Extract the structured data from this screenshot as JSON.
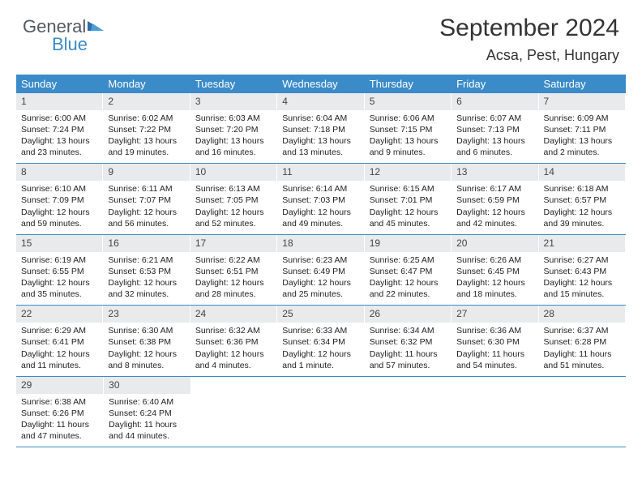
{
  "brand": {
    "part1": "General",
    "part2": "Blue"
  },
  "title": "September 2024",
  "location": "Acsa, Pest, Hungary",
  "header_bg": "#3b8bc9",
  "daynum_bg": "#e8eaec",
  "weekdays": [
    "Sunday",
    "Monday",
    "Tuesday",
    "Wednesday",
    "Thursday",
    "Friday",
    "Saturday"
  ],
  "weeks": [
    [
      {
        "n": "1",
        "sr": "6:00 AM",
        "ss": "7:24 PM",
        "dl": "13 hours and 23 minutes."
      },
      {
        "n": "2",
        "sr": "6:02 AM",
        "ss": "7:22 PM",
        "dl": "13 hours and 19 minutes."
      },
      {
        "n": "3",
        "sr": "6:03 AM",
        "ss": "7:20 PM",
        "dl": "13 hours and 16 minutes."
      },
      {
        "n": "4",
        "sr": "6:04 AM",
        "ss": "7:18 PM",
        "dl": "13 hours and 13 minutes."
      },
      {
        "n": "5",
        "sr": "6:06 AM",
        "ss": "7:15 PM",
        "dl": "13 hours and 9 minutes."
      },
      {
        "n": "6",
        "sr": "6:07 AM",
        "ss": "7:13 PM",
        "dl": "13 hours and 6 minutes."
      },
      {
        "n": "7",
        "sr": "6:09 AM",
        "ss": "7:11 PM",
        "dl": "13 hours and 2 minutes."
      }
    ],
    [
      {
        "n": "8",
        "sr": "6:10 AM",
        "ss": "7:09 PM",
        "dl": "12 hours and 59 minutes."
      },
      {
        "n": "9",
        "sr": "6:11 AM",
        "ss": "7:07 PM",
        "dl": "12 hours and 56 minutes."
      },
      {
        "n": "10",
        "sr": "6:13 AM",
        "ss": "7:05 PM",
        "dl": "12 hours and 52 minutes."
      },
      {
        "n": "11",
        "sr": "6:14 AM",
        "ss": "7:03 PM",
        "dl": "12 hours and 49 minutes."
      },
      {
        "n": "12",
        "sr": "6:15 AM",
        "ss": "7:01 PM",
        "dl": "12 hours and 45 minutes."
      },
      {
        "n": "13",
        "sr": "6:17 AM",
        "ss": "6:59 PM",
        "dl": "12 hours and 42 minutes."
      },
      {
        "n": "14",
        "sr": "6:18 AM",
        "ss": "6:57 PM",
        "dl": "12 hours and 39 minutes."
      }
    ],
    [
      {
        "n": "15",
        "sr": "6:19 AM",
        "ss": "6:55 PM",
        "dl": "12 hours and 35 minutes."
      },
      {
        "n": "16",
        "sr": "6:21 AM",
        "ss": "6:53 PM",
        "dl": "12 hours and 32 minutes."
      },
      {
        "n": "17",
        "sr": "6:22 AM",
        "ss": "6:51 PM",
        "dl": "12 hours and 28 minutes."
      },
      {
        "n": "18",
        "sr": "6:23 AM",
        "ss": "6:49 PM",
        "dl": "12 hours and 25 minutes."
      },
      {
        "n": "19",
        "sr": "6:25 AM",
        "ss": "6:47 PM",
        "dl": "12 hours and 22 minutes."
      },
      {
        "n": "20",
        "sr": "6:26 AM",
        "ss": "6:45 PM",
        "dl": "12 hours and 18 minutes."
      },
      {
        "n": "21",
        "sr": "6:27 AM",
        "ss": "6:43 PM",
        "dl": "12 hours and 15 minutes."
      }
    ],
    [
      {
        "n": "22",
        "sr": "6:29 AM",
        "ss": "6:41 PM",
        "dl": "12 hours and 11 minutes."
      },
      {
        "n": "23",
        "sr": "6:30 AM",
        "ss": "6:38 PM",
        "dl": "12 hours and 8 minutes."
      },
      {
        "n": "24",
        "sr": "6:32 AM",
        "ss": "6:36 PM",
        "dl": "12 hours and 4 minutes."
      },
      {
        "n": "25",
        "sr": "6:33 AM",
        "ss": "6:34 PM",
        "dl": "12 hours and 1 minute."
      },
      {
        "n": "26",
        "sr": "6:34 AM",
        "ss": "6:32 PM",
        "dl": "11 hours and 57 minutes."
      },
      {
        "n": "27",
        "sr": "6:36 AM",
        "ss": "6:30 PM",
        "dl": "11 hours and 54 minutes."
      },
      {
        "n": "28",
        "sr": "6:37 AM",
        "ss": "6:28 PM",
        "dl": "11 hours and 51 minutes."
      }
    ],
    [
      {
        "n": "29",
        "sr": "6:38 AM",
        "ss": "6:26 PM",
        "dl": "11 hours and 47 minutes."
      },
      {
        "n": "30",
        "sr": "6:40 AM",
        "ss": "6:24 PM",
        "dl": "11 hours and 44 minutes."
      },
      null,
      null,
      null,
      null,
      null
    ]
  ],
  "labels": {
    "sunrise": "Sunrise: ",
    "sunset": "Sunset: ",
    "daylight": "Daylight: "
  }
}
